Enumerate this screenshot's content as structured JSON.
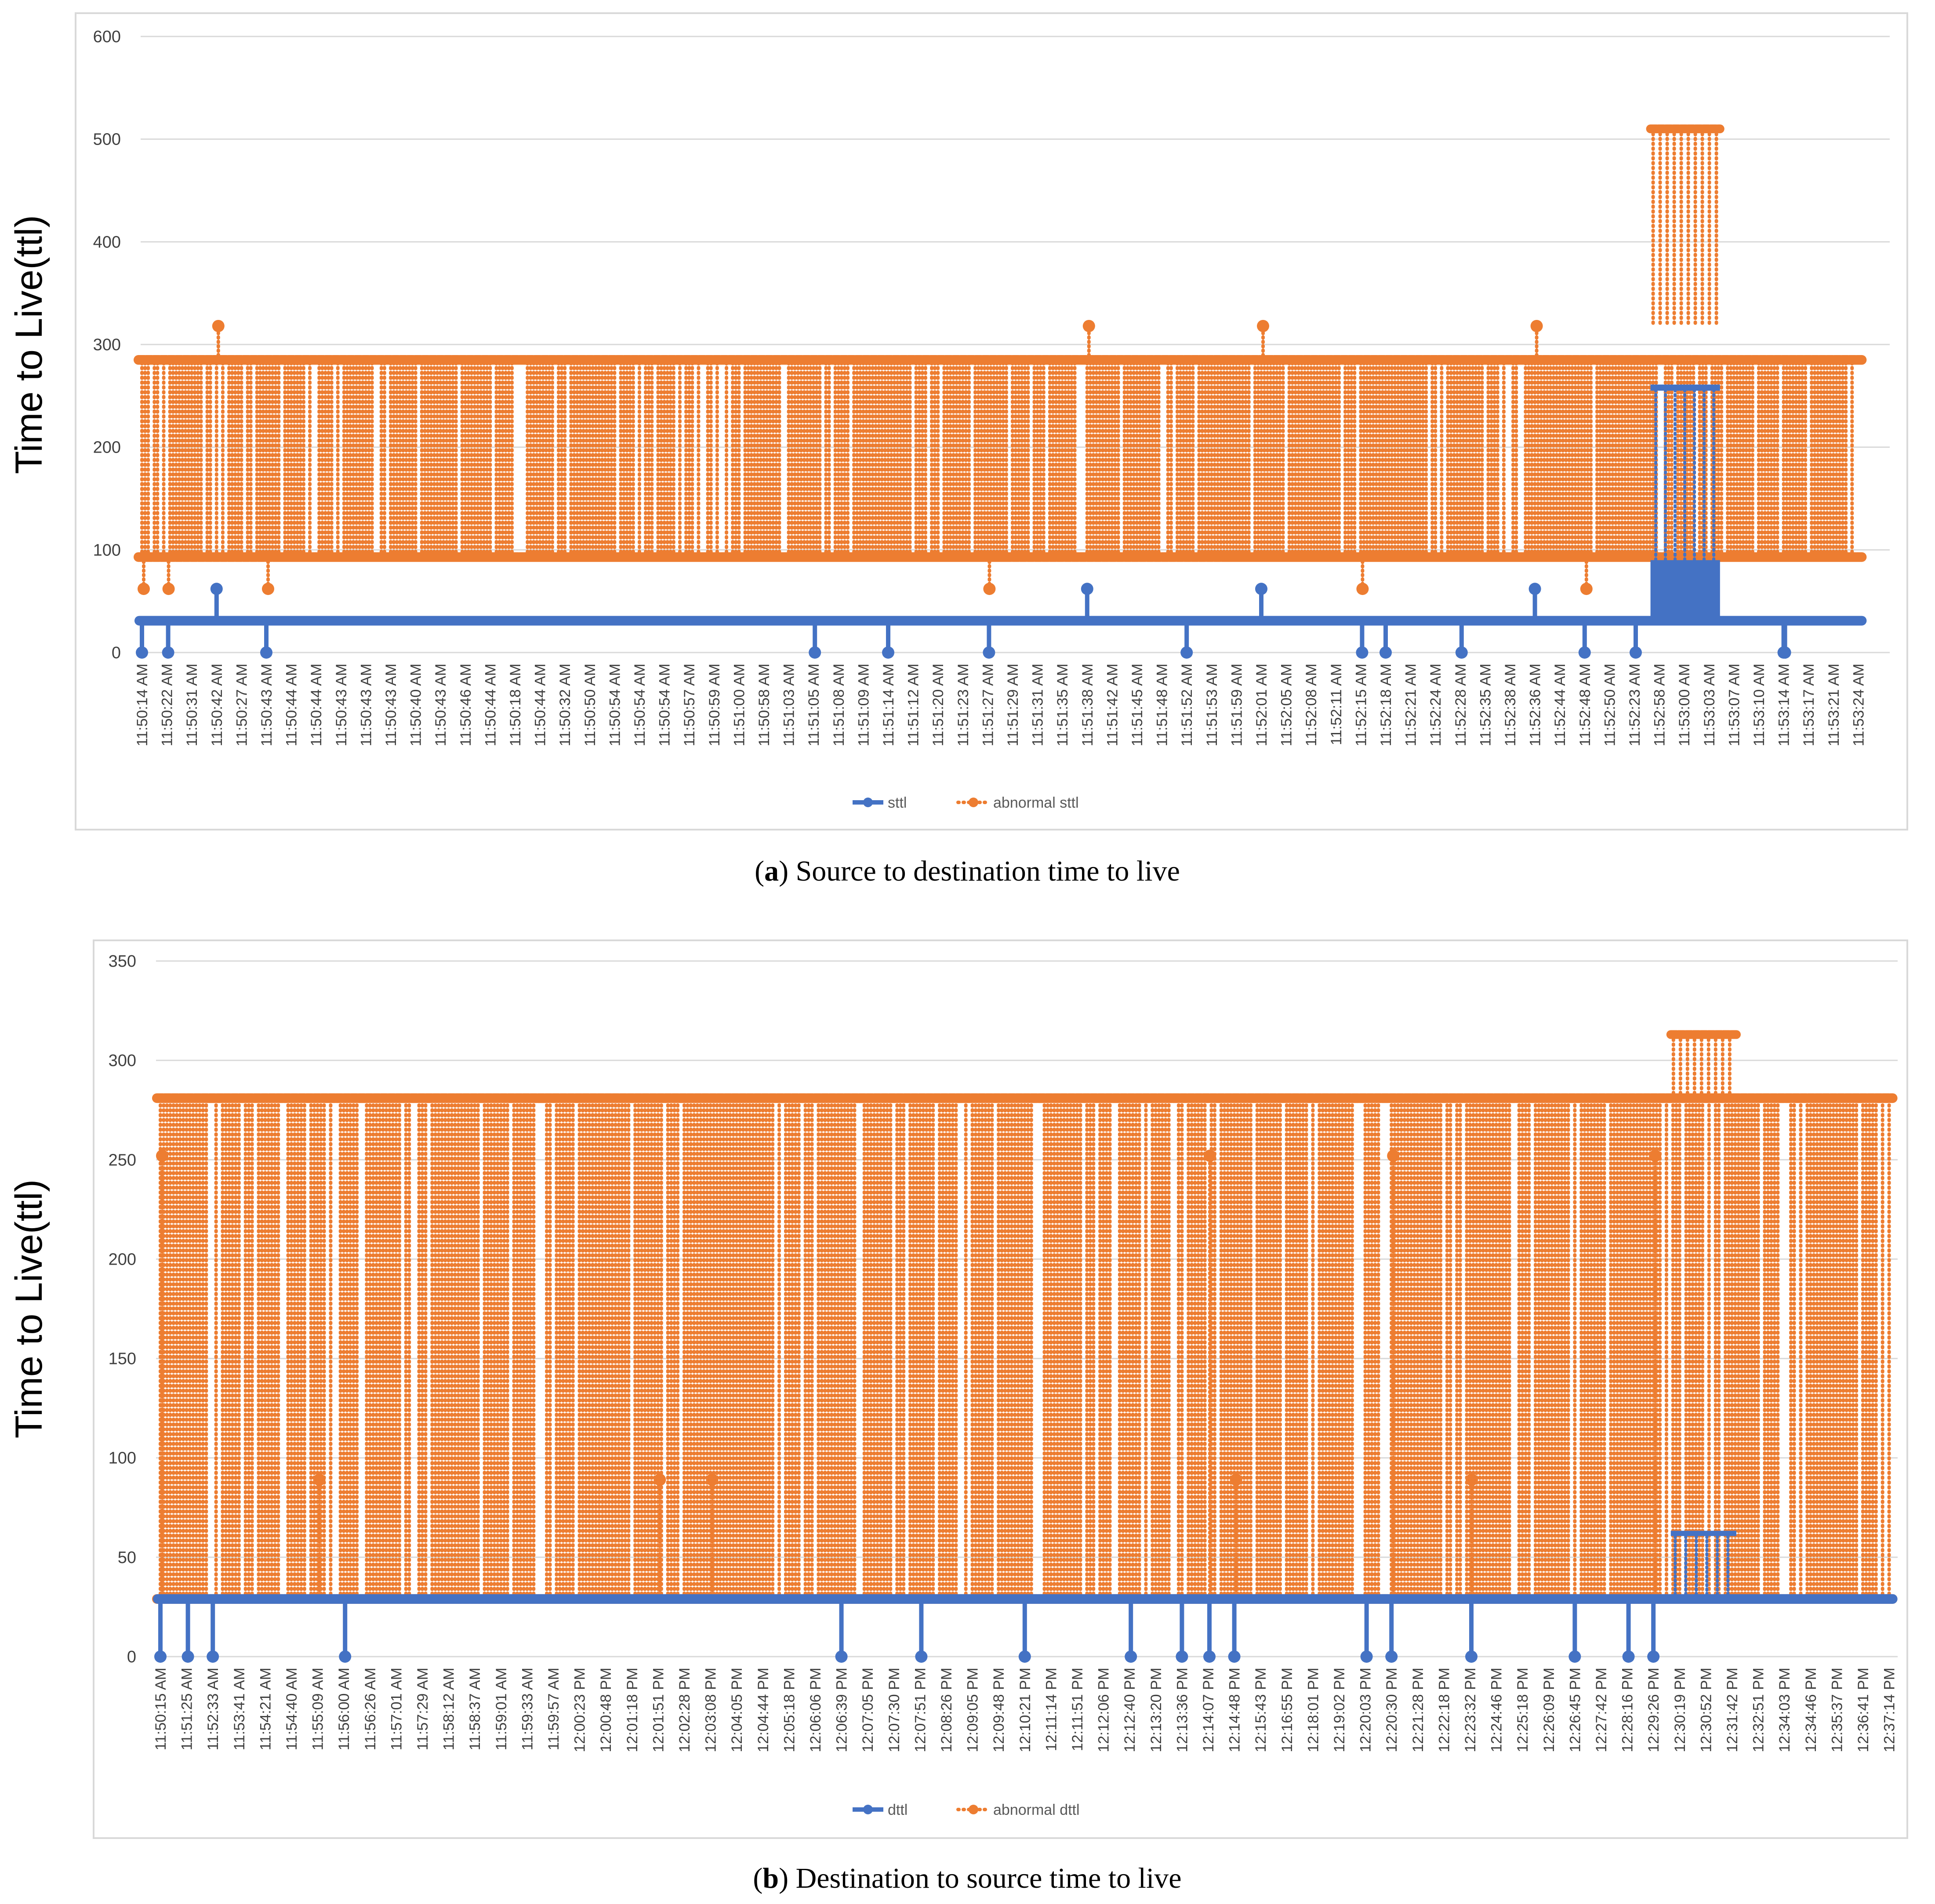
{
  "colors": {
    "series_normal": "#4472c4",
    "series_abnormal": "#ed7d31",
    "grid": "#d9d9d9",
    "frame": "#d9d9d9",
    "tick_text": "#404040",
    "legend_text": "#595959"
  },
  "chart_data": [
    {
      "type": "line",
      "title": "",
      "caption": {
        "letter": "a",
        "text": "Source to destination time to live"
      },
      "ylabel": "Time to Live(ttl)",
      "xlabel": "",
      "ylim": [
        0,
        600
      ],
      "yticks": [
        0,
        100,
        200,
        300,
        400,
        500,
        600
      ],
      "grid": true,
      "legend": {
        "position": "bottom-center",
        "entries": [
          "sttl",
          "abnormal sttl"
        ]
      },
      "categories": [
        "11:50:14 AM",
        "11:50:22 AM",
        "11:50:31 AM",
        "11:50:42 AM",
        "11:50:27 AM",
        "11:50:43 AM",
        "11:50:44 AM",
        "11:50:44 AM",
        "11:50:43 AM",
        "11:50:43 AM",
        "11:50:43 AM",
        "11:50:40 AM",
        "11:50:43 AM",
        "11:50:46 AM",
        "11:50:44 AM",
        "11:50:18 AM",
        "11:50:44 AM",
        "11:50:32 AM",
        "11:50:50 AM",
        "11:50:54 AM",
        "11:50:54 AM",
        "11:50:54 AM",
        "11:50:57 AM",
        "11:50:59 AM",
        "11:51:00 AM",
        "11:50:58 AM",
        "11:51:03 AM",
        "11:51:05 AM",
        "11:51:08 AM",
        "11:51:09 AM",
        "11:51:14 AM",
        "11:51:12 AM",
        "11:51:20 AM",
        "11:51:23 AM",
        "11:51:27 AM",
        "11:51:29 AM",
        "11:51:31 AM",
        "11:51:35 AM",
        "11:51:38 AM",
        "11:51:42 AM",
        "11:51:45 AM",
        "11:51:48 AM",
        "11:51:52 AM",
        "11:51:53 AM",
        "11:51:59 AM",
        "11:52:01 AM",
        "11:52:05 AM",
        "11:52:08 AM",
        "11:52:11 AM",
        "11:52:15 AM",
        "11:52:18 AM",
        "11:52:21 AM",
        "11:52:24 AM",
        "11:52:28 AM",
        "11:52:35 AM",
        "11:52:38 AM",
        "11:52:36 AM",
        "11:52:44 AM",
        "11:52:48 AM",
        "11:52:50 AM",
        "11:52:23 AM",
        "11:52:58 AM",
        "11:53:00 AM",
        "11:53:03 AM",
        "11:53:07 AM",
        "11:53:10 AM",
        "11:53:14 AM",
        "11:53:17 AM",
        "11:53:21 AM",
        "11:53:24 AM"
      ],
      "series": [
        {
          "name": "sttl",
          "baseline": 31,
          "drop_values": [
            0,
            0,
            0,
            0,
            0,
            0,
            0,
            0,
            0,
            0,
            0,
            0,
            0,
            0
          ],
          "spike_values": [
            62,
            62,
            62,
            62,
            254,
            254
          ]
        },
        {
          "name": "abnormal sttl",
          "low": 93,
          "high": 285,
          "outlier_values": [
            62,
            62,
            62,
            62,
            62,
            62,
            318,
            318,
            318,
            318
          ],
          "burst_high": 510,
          "burst_low": 318
        }
      ]
    },
    {
      "type": "line",
      "title": "",
      "caption": {
        "letter": "b",
        "text": "Destination to source time to live"
      },
      "ylabel": "Time to Live(ttl)",
      "xlabel": "",
      "ylim": [
        0,
        350
      ],
      "yticks": [
        0,
        50,
        100,
        150,
        200,
        250,
        300,
        350
      ],
      "grid": true,
      "legend": {
        "position": "bottom-center",
        "entries": [
          "dttl",
          "abnormal dttl"
        ]
      },
      "categories": [
        "11:50:15 AM",
        "11:51:25 AM",
        "11:52:33 AM",
        "11:53:41 AM",
        "11:54:21 AM",
        "11:54:40 AM",
        "11:55:09 AM",
        "11:56:00 AM",
        "11:56:26 AM",
        "11:57:01 AM",
        "11:57:29 AM",
        "11:58:12 AM",
        "11:58:37 AM",
        "11:59:01 AM",
        "11:59:33 AM",
        "11:59:57 AM",
        "12:00:23 PM",
        "12:00:48 PM",
        "12:01:18 PM",
        "12:01:51 PM",
        "12:02:28 PM",
        "12:03:08 PM",
        "12:04:05 PM",
        "12:04:44 PM",
        "12:05:18 PM",
        "12:06:06 PM",
        "12:06:39 PM",
        "12:07:05 PM",
        "12:07:30 PM",
        "12:07:51 PM",
        "12:08:26 PM",
        "12:09:05 PM",
        "12:09:48 PM",
        "12:10:21 PM",
        "12:11:14 PM",
        "12:11:51 PM",
        "12:12:06 PM",
        "12:12:40 PM",
        "12:13:20 PM",
        "12:13:36 PM",
        "12:14:07 PM",
        "12:14:48 PM",
        "12:15:43 PM",
        "12:16:55 PM",
        "12:18:01 PM",
        "12:19:02 PM",
        "12:20:03 PM",
        "12:20:30 PM",
        "12:21:28 PM",
        "12:22:18 PM",
        "12:23:32 PM",
        "12:24:46 PM",
        "12:25:18 PM",
        "12:26:09 PM",
        "12:26:45 PM",
        "12:27:42 PM",
        "12:28:16 PM",
        "12:29:26 PM",
        "12:30:19 PM",
        "12:30:52 PM",
        "12:31:42 PM",
        "12:32:51 PM",
        "12:34:03 PM",
        "12:34:46 PM",
        "12:35:37 PM",
        "12:36:41 PM",
        "12:37:14 PM"
      ],
      "series": [
        {
          "name": "dttl",
          "baseline": 29,
          "drop_values": [
            0,
            0,
            0,
            0,
            0,
            0,
            0,
            0,
            0,
            0,
            0,
            0,
            0,
            0,
            0,
            0,
            0
          ],
          "spike_values": [
            62,
            62,
            62,
            62
          ]
        },
        {
          "name": "abnormal dttl",
          "low": 29,
          "high": 281,
          "outlier_values": [
            252,
            89,
            89,
            89,
            89,
            89,
            252,
            252,
            252
          ],
          "burst_high": 313,
          "burst_low": 281
        }
      ]
    }
  ]
}
